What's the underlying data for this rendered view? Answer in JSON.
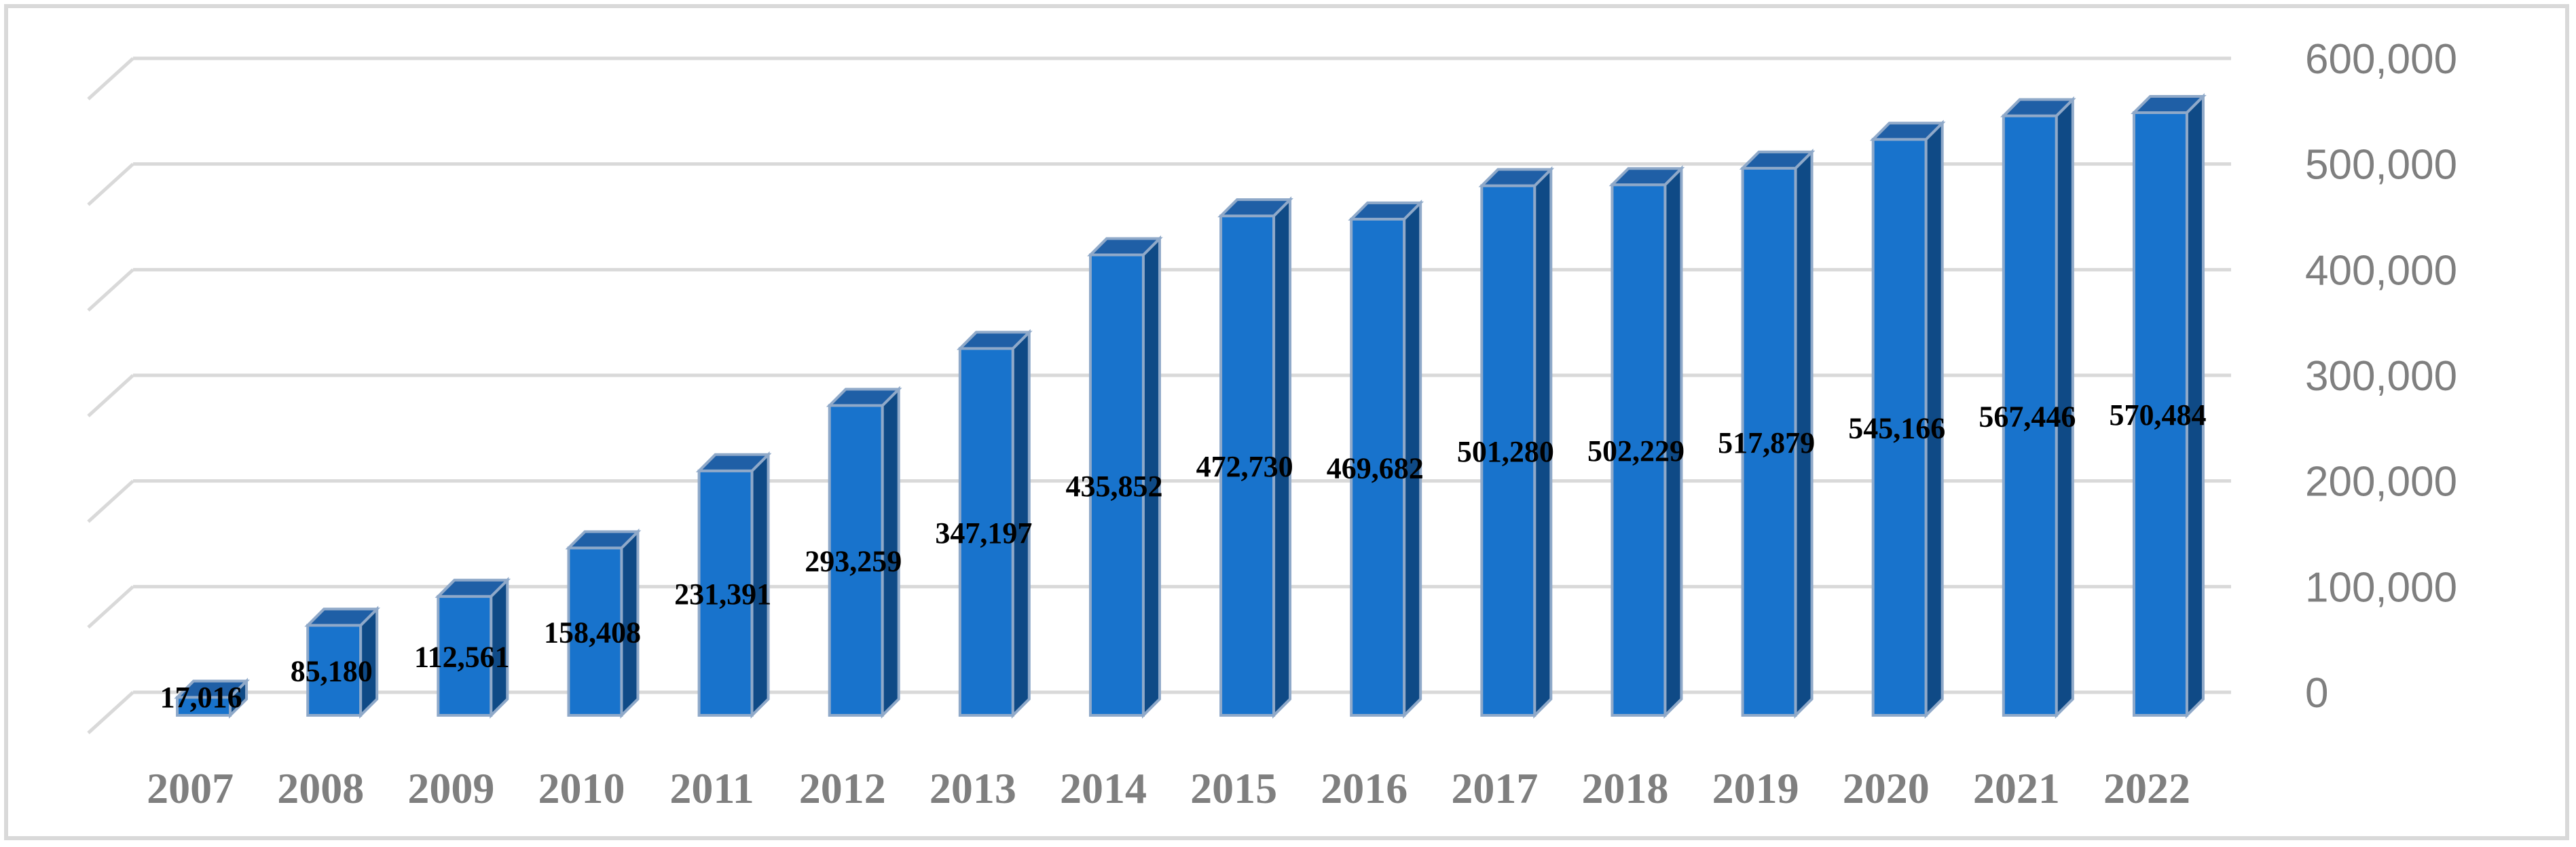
{
  "chart_data": {
    "type": "bar",
    "style": "3d-column",
    "categories": [
      "2007",
      "2008",
      "2009",
      "2010",
      "2011",
      "2012",
      "2013",
      "2014",
      "2015",
      "2016",
      "2017",
      "2018",
      "2019",
      "2020",
      "2021",
      "2022"
    ],
    "values": [
      17016,
      85180,
      112561,
      158408,
      231391,
      293259,
      347197,
      435852,
      472730,
      469682,
      501280,
      502229,
      517879,
      545166,
      567446,
      570484
    ],
    "value_labels": [
      "17,016",
      "85,180",
      "112,561",
      "158,408",
      "231,391",
      "293,259",
      "347,197",
      "435,852",
      "472,730",
      "469,682",
      "501,280",
      "502,229",
      "517,879",
      "545,166",
      "567,446",
      "570,484"
    ],
    "title": "",
    "xlabel": "",
    "ylabel": "",
    "ylim": [
      0,
      600000
    ],
    "y_ticks": [
      0,
      100000,
      200000,
      300000,
      400000,
      500000,
      600000
    ],
    "y_tick_labels": [
      "0",
      "100,000",
      "200,000",
      "300,000",
      "400,000",
      "500,000",
      "600,000"
    ],
    "y_axis_position": "right",
    "grid": true,
    "legend": "none",
    "colors": {
      "bar_front": "#1873cc",
      "bar_top": "#1f5fa6",
      "bar_side": "#0f4a86",
      "bar_edge": "#8fa9c9",
      "gridline": "#d9d9d9",
      "axis_text": "#7f7f7f",
      "data_label": "#000000"
    }
  }
}
